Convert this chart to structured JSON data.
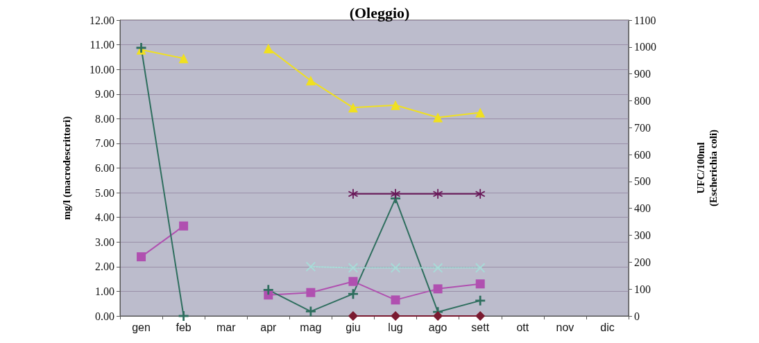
{
  "chart_data": {
    "type": "line",
    "title": "(Oleggio)",
    "ylabel": "mg/l (macrodescrittori)",
    "y2label": "UFC/100ml\n(Escherichia coli)",
    "categories": [
      "gen",
      "feb",
      "mar",
      "apr",
      "mag",
      "giu",
      "lug",
      "ago",
      "sett",
      "ott",
      "nov",
      "dic"
    ],
    "series": [
      {
        "color": "#f0e020",
        "marker": "triangle",
        "values": [
          10.8,
          10.45,
          null,
          10.85,
          9.55,
          8.45,
          8.55,
          8.05,
          8.25,
          null,
          null,
          null
        ]
      },
      {
        "color": "#b050b0",
        "marker": "square",
        "values": [
          2.4,
          3.65,
          null,
          0.85,
          0.95,
          1.4,
          0.65,
          1.1,
          1.3,
          null,
          null,
          null
        ]
      },
      {
        "color": "#2e6e5e",
        "marker": "cross",
        "axis": "y2",
        "values": [
          997,
          0,
          null,
          97,
          17,
          82,
          437,
          15,
          57,
          null,
          null,
          null
        ]
      },
      {
        "color": "#6a1a5a",
        "marker": "star",
        "values": [
          null,
          null,
          null,
          null,
          null,
          4.95,
          4.95,
          4.95,
          4.95,
          null,
          null,
          null
        ]
      },
      {
        "color": "#a8dcd8",
        "marker": "x",
        "line_style": "dotted",
        "values": [
          null,
          null,
          null,
          null,
          2.0,
          1.95,
          1.95,
          1.95,
          1.95,
          null,
          null,
          null
        ]
      },
      {
        "color": "#7a1a30",
        "marker": "diamond",
        "values": [
          null,
          null,
          null,
          null,
          null,
          0,
          0,
          0,
          0,
          null,
          null,
          null
        ]
      }
    ],
    "ylim": [
      0,
      12
    ],
    "yticks": [
      {
        "value": 0,
        "label": "0.00"
      },
      {
        "value": 1,
        "label": "1.00"
      },
      {
        "value": 2,
        "label": "2.00"
      },
      {
        "value": 3,
        "label": "3.00"
      },
      {
        "value": 4,
        "label": "4.00"
      },
      {
        "value": 5,
        "label": "5.00"
      },
      {
        "value": 6,
        "label": "6.00"
      },
      {
        "value": 7,
        "label": "7.00"
      },
      {
        "value": 8,
        "label": "8.00"
      },
      {
        "value": 9,
        "label": "9.00"
      },
      {
        "value": 10,
        "label": "10.00"
      },
      {
        "value": 11,
        "label": "11.00"
      },
      {
        "value": 12,
        "label": "12.00"
      }
    ],
    "y2lim": [
      0,
      1100
    ],
    "y2ticks": [
      0,
      100,
      200,
      300,
      400,
      500,
      600,
      700,
      800,
      900,
      1000,
      1100
    ],
    "grid": "y"
  }
}
